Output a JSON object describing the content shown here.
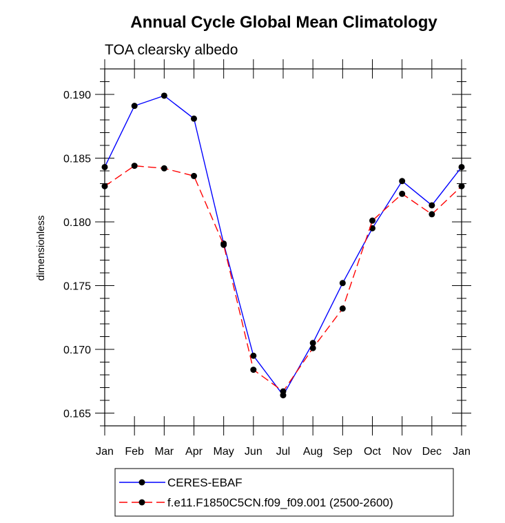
{
  "chart_data": {
    "type": "line",
    "title": "Annual Cycle Global Mean Climatology",
    "subtitle": "TOA clearsky albedo",
    "xlabel": "",
    "ylabel": "dimensionless",
    "ylim": [
      0.164,
      0.192
    ],
    "yticks": [
      "0.165",
      "0.170",
      "0.175",
      "0.180",
      "0.185",
      "0.190"
    ],
    "categories": [
      "Jan",
      "Feb",
      "Mar",
      "Apr",
      "May",
      "Jun",
      "Jul",
      "Aug",
      "Sep",
      "Oct",
      "Nov",
      "Dec",
      "Jan"
    ],
    "grid": false,
    "legend_position": "bottom",
    "series": [
      {
        "name": "CERES-EBAF",
        "color": "#0000ff",
        "dash": "solid",
        "values": [
          0.1843,
          0.1891,
          0.1899,
          0.1881,
          0.1783,
          0.1695,
          0.1664,
          0.1705,
          0.1752,
          0.1795,
          0.1832,
          0.1813,
          0.1843
        ]
      },
      {
        "name": "f.e11.F1850C5CN.f09_f09.001 (2500-2600)",
        "color": "#ff0000",
        "dash": "dashed",
        "values": [
          0.1828,
          0.1844,
          0.1842,
          0.1836,
          0.1782,
          0.1684,
          0.1667,
          0.1701,
          0.1732,
          0.1801,
          0.1822,
          0.1806,
          0.1828
        ]
      }
    ]
  }
}
